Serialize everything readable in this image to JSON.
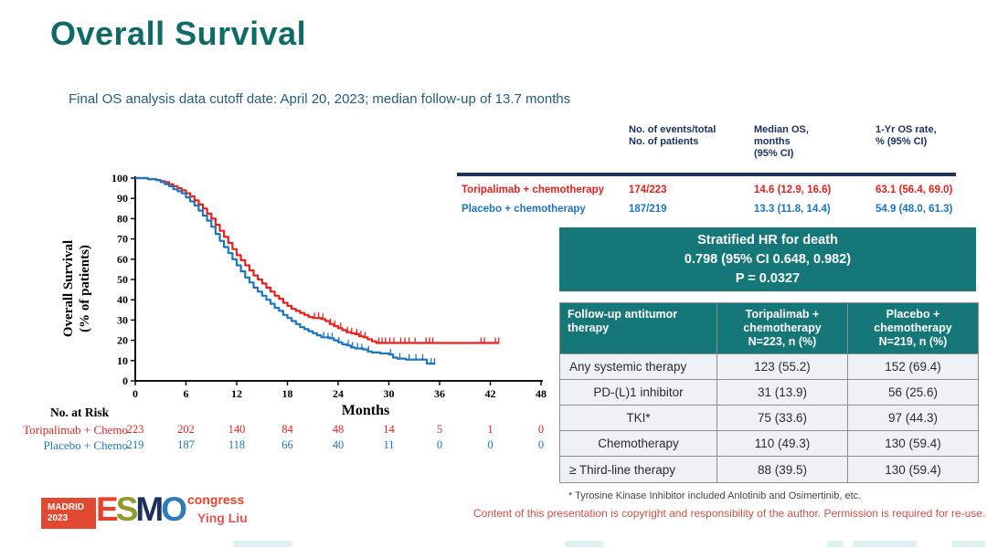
{
  "title": "Overall Survival",
  "subtitle": "Final OS analysis data cutoff date: April 20, 2023; median follow-up of 13.7 months",
  "colors": {
    "title_teal": "#0f6a68",
    "accent_red": "#e8211c",
    "accent_blue": "#1b76c0",
    "teal_box": "#167779",
    "navy": "#1b3263"
  },
  "summary_table": {
    "headers": [
      "No. of events/total\nNo. of patients",
      "Median OS,\nmonths\n(95% CI)",
      "1-Yr OS rate,\n% (95% CI)"
    ],
    "rows": [
      {
        "label": "Toripalimab + chemotherapy",
        "events": "174/223",
        "median_os": "14.6 (12.9, 16.6)",
        "os_rate": "63.1 (56.4, 69.0)"
      },
      {
        "label": "Placebo + chemotherapy",
        "events": "187/219",
        "median_os": "13.3 (11.8, 14.4)",
        "os_rate": "54.9 (48.0, 61.3)"
      }
    ]
  },
  "hr_box": {
    "line1": "Stratified HR for death",
    "line2": "0.798 (95% CI 0.648, 0.982)",
    "line3": "P = 0.0327"
  },
  "followup_table": {
    "headers": [
      "Follow-up antitumor\ntherapy",
      "Toripalimab +\nchemotherapy\nN=223, n (%)",
      "Placebo +\nchemotherapy\nN=219, n (%)"
    ],
    "rows": [
      {
        "label": "Any systemic therapy",
        "toripalimab": "123 (55.2)",
        "placebo": "152 (69.4)"
      },
      {
        "label": "PD-(L)1 inhibitor",
        "toripalimab": "31 (13.9)",
        "placebo": "56 (25.6)"
      },
      {
        "label": "TKI*",
        "toripalimab": "75 (33.6)",
        "placebo": "97 (44.3)"
      },
      {
        "label": "Chemotherapy",
        "toripalimab": "110 (49.3)",
        "placebo": "130 (59.4)"
      },
      {
        "label": "≥ Third-line therapy",
        "toripalimab": "88 (39.5)",
        "placebo": "130 (59.4)"
      }
    ]
  },
  "footnote": "* Tyrosine Kinase Inhibitor included Anlotinib and Osimertinib, etc.",
  "copyright": "Content of this presentation is copyright and responsibility of the author. Permission is required for re-use.",
  "footer": {
    "logo": {
      "city": "MADRID",
      "year": "2023",
      "letters": [
        "E",
        "S",
        "M",
        "O"
      ],
      "congress": "congress",
      "colors": {
        "box": "#e14a31",
        "e": "#e8402a",
        "s": "#8e9c2f",
        "m": "#1d2f5e",
        "o": "#2e7bb5"
      }
    },
    "author": "Ying Liu"
  },
  "chart_data": {
    "type": "line",
    "subtype": "kaplan-meier",
    "xlabel": "Months",
    "ylabel_line1": "Overall Survival",
    "ylabel_line2": "(% of patients)",
    "xlim": [
      0,
      48
    ],
    "ylim": [
      0,
      100
    ],
    "xticks": [
      0,
      6,
      12,
      18,
      24,
      30,
      36,
      42,
      48
    ],
    "yticks": [
      0,
      10,
      20,
      30,
      40,
      50,
      60,
      70,
      80,
      90,
      100
    ],
    "grid": false,
    "series": [
      {
        "name": "Toripalimab + chemotherapy",
        "color": "#e8211c",
        "steps": [
          [
            0,
            100
          ],
          [
            1.5,
            99.5
          ],
          [
            2.5,
            99
          ],
          [
            3,
            98.5
          ],
          [
            3.5,
            98
          ],
          [
            4,
            97
          ],
          [
            4.5,
            96
          ],
          [
            5,
            95
          ],
          [
            5.5,
            94
          ],
          [
            6,
            92.5
          ],
          [
            6.5,
            91
          ],
          [
            7,
            89
          ],
          [
            7.5,
            87
          ],
          [
            8,
            85
          ],
          [
            8.5,
            82.5
          ],
          [
            9,
            80
          ],
          [
            9.5,
            77
          ],
          [
            10,
            74
          ],
          [
            10.5,
            71
          ],
          [
            11,
            68
          ],
          [
            11.5,
            65
          ],
          [
            12,
            62
          ],
          [
            12.5,
            59.5
          ],
          [
            13,
            57
          ],
          [
            13.5,
            54.5
          ],
          [
            14,
            52
          ],
          [
            14.5,
            50
          ],
          [
            15,
            48
          ],
          [
            15.5,
            46
          ],
          [
            16,
            44
          ],
          [
            16.5,
            42
          ],
          [
            17,
            40.5
          ],
          [
            17.5,
            38.5
          ],
          [
            18,
            37
          ],
          [
            18.5,
            35.5
          ],
          [
            19,
            34.5
          ],
          [
            19.5,
            33.5
          ],
          [
            20,
            32.5
          ],
          [
            20.5,
            31.5
          ],
          [
            21,
            31
          ],
          [
            22,
            30.5
          ],
          [
            22.5,
            29.5
          ],
          [
            23,
            28
          ],
          [
            23.5,
            27
          ],
          [
            24,
            26
          ],
          [
            24.5,
            25
          ],
          [
            25,
            24
          ],
          [
            25.5,
            23.5
          ],
          [
            26,
            23
          ],
          [
            26.5,
            22
          ],
          [
            27,
            21.5
          ],
          [
            27.5,
            20.5
          ],
          [
            28,
            19.5
          ],
          [
            28.5,
            18.7
          ],
          [
            43,
            18.7
          ]
        ],
        "censors": [
          [
            21.2,
            31
          ],
          [
            21.7,
            31
          ],
          [
            22.2,
            30.5
          ],
          [
            23.1,
            28
          ],
          [
            23.6,
            27
          ],
          [
            24.3,
            26
          ],
          [
            25.1,
            24
          ],
          [
            25.6,
            23.5
          ],
          [
            26.2,
            23
          ],
          [
            26.7,
            22
          ],
          [
            27.2,
            21.5
          ],
          [
            28.8,
            18.7
          ],
          [
            29.2,
            18.7
          ],
          [
            29.6,
            18.7
          ],
          [
            30.1,
            18.7
          ],
          [
            30.6,
            18.7
          ],
          [
            31.4,
            18.7
          ],
          [
            31.9,
            18.7
          ],
          [
            32.4,
            18.7
          ],
          [
            33.1,
            18.7
          ],
          [
            34.4,
            18.7
          ],
          [
            34.8,
            18.7
          ],
          [
            35.2,
            18.7
          ],
          [
            40.9,
            18.7
          ],
          [
            41.3,
            18.7
          ],
          [
            42.6,
            18.7
          ],
          [
            43,
            18.7
          ]
        ]
      },
      {
        "name": "Placebo + chemotherapy",
        "color": "#1b76c0",
        "steps": [
          [
            0,
            100
          ],
          [
            1.5,
            99.5
          ],
          [
            2.5,
            99
          ],
          [
            3,
            98
          ],
          [
            3.5,
            97
          ],
          [
            4,
            96
          ],
          [
            4.5,
            94.5
          ],
          [
            5,
            93.5
          ],
          [
            5.5,
            92.5
          ],
          [
            6,
            90.5
          ],
          [
            6.5,
            88.5
          ],
          [
            7,
            86.5
          ],
          [
            7.5,
            84
          ],
          [
            8,
            81.5
          ],
          [
            8.5,
            79
          ],
          [
            9,
            76
          ],
          [
            9.5,
            72.5
          ],
          [
            10,
            69
          ],
          [
            10.5,
            66
          ],
          [
            11,
            63
          ],
          [
            11.5,
            60
          ],
          [
            12,
            57
          ],
          [
            12.5,
            54
          ],
          [
            13,
            51
          ],
          [
            13.5,
            48.5
          ],
          [
            14,
            46
          ],
          [
            14.5,
            44
          ],
          [
            15,
            42
          ],
          [
            15.5,
            40
          ],
          [
            16,
            38
          ],
          [
            16.5,
            36
          ],
          [
            17,
            34.5
          ],
          [
            17.5,
            32.5
          ],
          [
            18,
            31
          ],
          [
            18.5,
            29.5
          ],
          [
            19,
            28
          ],
          [
            19.5,
            26.5
          ],
          [
            20,
            25.5
          ],
          [
            20.5,
            24.5
          ],
          [
            21,
            23.5
          ],
          [
            21.5,
            22.5
          ],
          [
            22,
            21.5
          ],
          [
            23,
            21
          ],
          [
            23.5,
            20
          ],
          [
            24,
            19
          ],
          [
            24.5,
            18
          ],
          [
            25,
            17.5
          ],
          [
            25.5,
            16.5
          ],
          [
            26,
            16
          ],
          [
            27,
            15.5
          ],
          [
            27.5,
            14.5
          ],
          [
            28,
            14
          ],
          [
            29,
            13.5
          ],
          [
            30,
            13
          ],
          [
            30.5,
            11.5
          ],
          [
            31,
            11
          ],
          [
            32,
            10.5
          ],
          [
            34,
            10.5
          ],
          [
            34.5,
            8.5
          ],
          [
            35.5,
            8.5
          ]
        ],
        "censors": [
          [
            22.3,
            21.5
          ],
          [
            22.8,
            21
          ],
          [
            23.3,
            21
          ],
          [
            24.1,
            19
          ],
          [
            25.2,
            17.5
          ],
          [
            25.7,
            16.5
          ],
          [
            26.3,
            16
          ],
          [
            26.8,
            15.5
          ],
          [
            27.6,
            14.5
          ],
          [
            30.2,
            13
          ],
          [
            31.3,
            11
          ],
          [
            32.4,
            10.5
          ],
          [
            33.2,
            10.5
          ],
          [
            34,
            10.5
          ],
          [
            35,
            8.5
          ],
          [
            35.4,
            8.5
          ]
        ]
      }
    ],
    "risk_table": {
      "title": "No. at Risk",
      "rows": [
        {
          "label": "Toripalimab + Chemo",
          "color": "#e8211c",
          "values": [
            223,
            202,
            140,
            84,
            48,
            14,
            5,
            1,
            0
          ]
        },
        {
          "label": "Placebo + Chemo",
          "color": "#1b76c0",
          "values": [
            219,
            187,
            118,
            66,
            40,
            11,
            0,
            0,
            0
          ]
        }
      ]
    }
  }
}
